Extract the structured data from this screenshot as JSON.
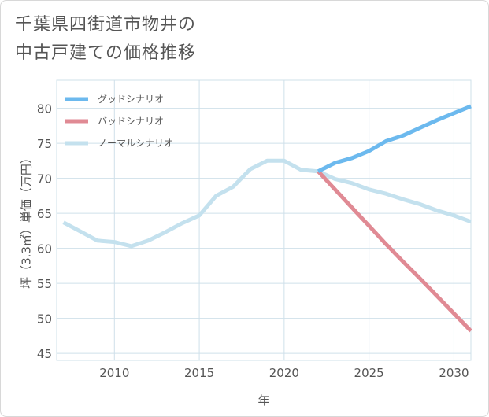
{
  "title_lines": [
    "千葉県四街道市物井の",
    "中古戸建ての価格推移"
  ],
  "chart_data": {
    "type": "line",
    "xlabel": "年",
    "ylabel": "坪（3.3㎡）単価（万円）",
    "xlim": [
      2006.6,
      2031
    ],
    "ylim": [
      44,
      84
    ],
    "xticks": [
      2010,
      2015,
      2020,
      2025,
      2030
    ],
    "yticks": [
      45,
      50,
      55,
      60,
      65,
      70,
      75,
      80
    ],
    "grid": true,
    "legend_position": "top-left",
    "series": [
      {
        "name": "グッドシナリオ",
        "color": "#6cb9ee",
        "x": [
          2022,
          2023,
          2024,
          2025,
          2026,
          2027,
          2028,
          2029,
          2030,
          2031
        ],
        "y": [
          71.0,
          72.2,
          72.9,
          73.9,
          75.3,
          76.1,
          77.2,
          78.3,
          79.3,
          80.3
        ]
      },
      {
        "name": "バッドシナリオ",
        "color": "#e08a94",
        "x": [
          2022,
          2023,
          2024,
          2025,
          2026,
          2027,
          2028,
          2029,
          2030,
          2031
        ],
        "y": [
          71.0,
          68.4,
          65.8,
          63.2,
          60.6,
          58.1,
          55.7,
          53.2,
          50.7,
          48.2
        ]
      },
      {
        "name": "ノーマルシナリオ",
        "color": "#c4e1ee",
        "x": [
          2007,
          2008,
          2009,
          2010,
          2011,
          2012,
          2013,
          2014,
          2015,
          2016,
          2017,
          2018,
          2019,
          2020,
          2021,
          2022,
          2023,
          2024,
          2025,
          2026,
          2027,
          2028,
          2029,
          2030,
          2031
        ],
        "y": [
          63.7,
          62.4,
          61.1,
          60.9,
          60.3,
          61.1,
          62.3,
          63.6,
          64.7,
          67.5,
          68.8,
          71.3,
          72.5,
          72.5,
          71.2,
          71.0,
          69.9,
          69.3,
          68.4,
          67.8,
          67.0,
          66.3,
          65.4,
          64.7,
          63.8
        ]
      }
    ]
  }
}
